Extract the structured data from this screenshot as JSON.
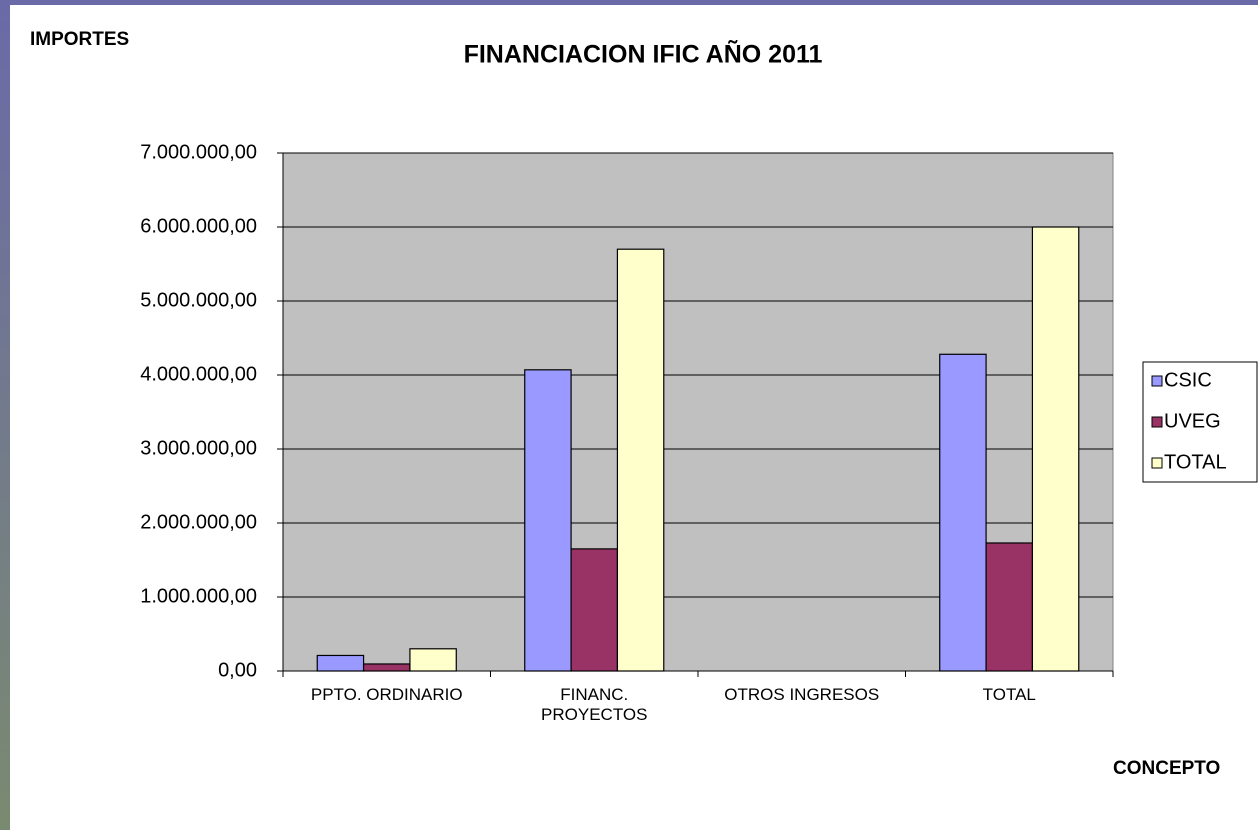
{
  "chart_data": {
    "type": "bar",
    "title": "FINANCIACION IFIC AÑO 2011",
    "y_label": "IMPORTES",
    "x_label": "CONCEPTO",
    "categories": [
      "PPTO. ORDINARIO",
      "FINANC.\nPROYECTOS",
      "OTROS INGRESOS",
      "TOTAL"
    ],
    "series": [
      {
        "name": "CSIC",
        "color": "#9999ff",
        "values": [
          210000,
          4070000,
          0,
          4280000
        ]
      },
      {
        "name": "UVEG",
        "color": "#993366",
        "values": [
          95000,
          1650000,
          0,
          1730000
        ]
      },
      {
        "name": "TOTAL",
        "color": "#ffffcc",
        "values": [
          300000,
          5700000,
          0,
          6000000
        ]
      }
    ],
    "ylim": [
      0,
      7000000
    ],
    "yticks": [
      {
        "value": 0,
        "label": "0,00"
      },
      {
        "value": 1000000,
        "label": "1.000.000,00"
      },
      {
        "value": 2000000,
        "label": "2.000.000,00"
      },
      {
        "value": 3000000,
        "label": "3.000.000,00"
      },
      {
        "value": 4000000,
        "label": "4.000.000,00"
      },
      {
        "value": 5000000,
        "label": "5.000.000,00"
      },
      {
        "value": 6000000,
        "label": "6.000.000,00"
      },
      {
        "value": 7000000,
        "label": "7.000.000,00"
      }
    ],
    "grid": true,
    "legend": "right",
    "plot_background": "#c0c0c0"
  }
}
